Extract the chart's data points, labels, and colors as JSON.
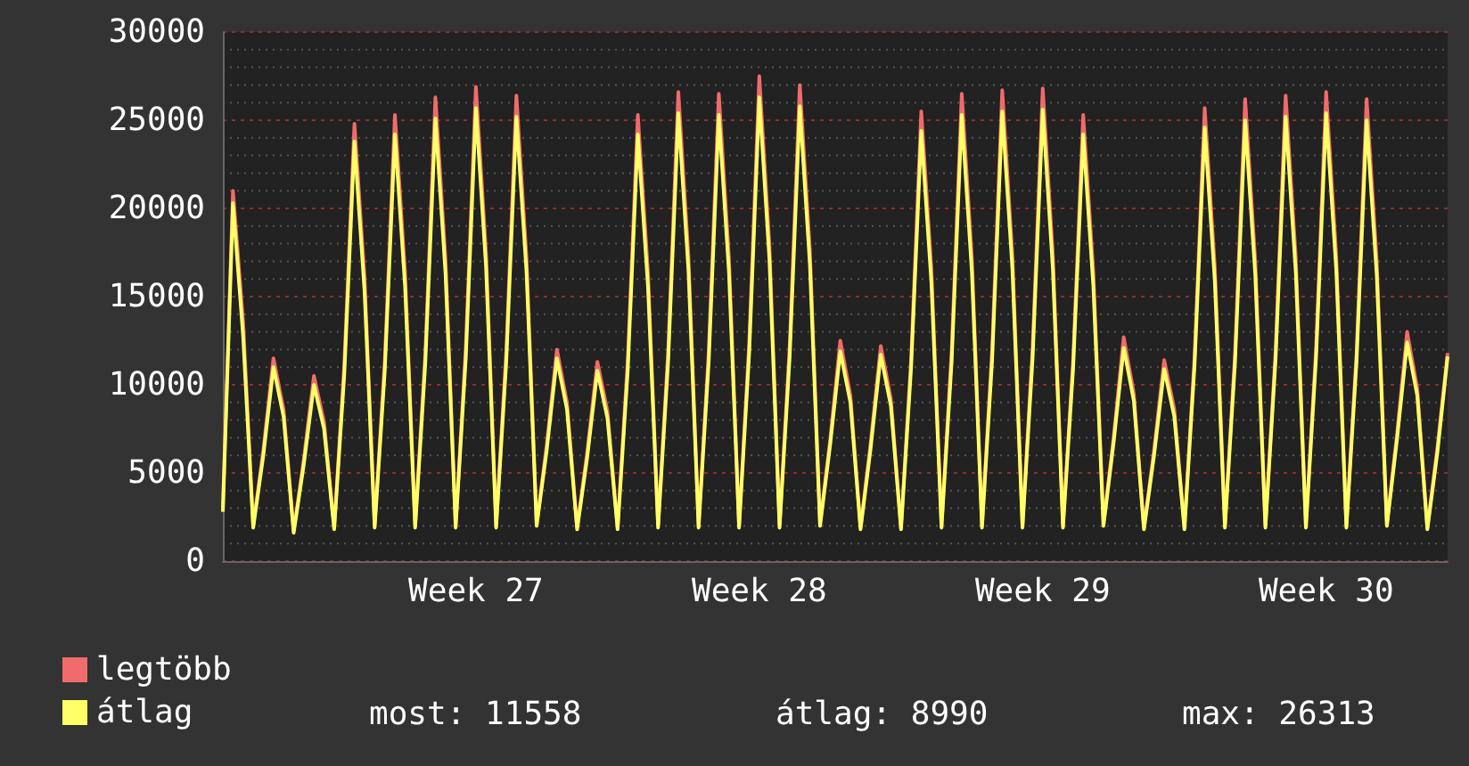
{
  "chart_data": {
    "type": "line",
    "marker": "none",
    "line_style": "solid",
    "grid": "y",
    "legend": "bottom left",
    "categories": [
      null,
      null,
      null,
      null,
      null,
      null,
      null,
      null,
      null,
      null,
      null,
      null,
      null,
      null,
      null,
      null,
      null,
      null,
      null,
      null,
      null,
      null,
      null,
      null,
      null,
      "Week 27",
      null,
      null,
      null,
      null,
      null,
      null,
      null,
      null,
      null,
      null,
      null,
      null,
      null,
      null,
      null,
      null,
      null,
      null,
      null,
      null,
      null,
      null,
      null,
      null,
      null,
      null,
      null,
      "Week 28",
      null,
      null,
      null,
      null,
      null,
      null,
      null,
      null,
      null,
      null,
      null,
      null,
      null,
      null,
      null,
      null,
      null,
      null,
      null,
      null,
      null,
      null,
      null,
      null,
      null,
      null,
      null,
      "Week 29",
      null,
      null,
      null,
      null,
      null,
      null,
      null,
      null,
      null,
      null,
      null,
      null,
      null,
      null,
      null,
      null,
      null,
      null,
      null,
      null,
      null,
      null,
      null,
      null,
      null,
      null,
      null,
      "Week 30",
      null,
      null,
      null,
      null,
      null,
      null,
      null,
      null,
      null,
      null,
      null,
      null
    ],
    "series": [
      {
        "name": "legtöbb",
        "color": "#f06b6b",
        "values": [
          3000,
          21000,
          13600,
          2000,
          6300,
          11500,
          8600,
          1700,
          5800,
          10500,
          7900,
          1900,
          11200,
          24800,
          16100,
          2000,
          11400,
          25300,
          16400,
          2000,
          11800,
          26300,
          17100,
          2000,
          12100,
          26900,
          17500,
          2000,
          11900,
          26400,
          17200,
          2100,
          6600,
          12000,
          9000,
          1900,
          6200,
          11300,
          8500,
          1900,
          11400,
          25300,
          16400,
          2000,
          12000,
          26600,
          17300,
          2000,
          11900,
          26500,
          17200,
          2000,
          12400,
          27500,
          17900,
          2000,
          12200,
          27000,
          17600,
          2100,
          6900,
          12500,
          9400,
          1900,
          6700,
          12200,
          9200,
          1900,
          11500,
          25500,
          16600,
          2000,
          11900,
          26500,
          17200,
          2000,
          12000,
          26700,
          17400,
          2000,
          12100,
          26800,
          17400,
          2000,
          11400,
          25300,
          16400,
          2100,
          7000,
          12700,
          9500,
          1900,
          6300,
          11400,
          8600,
          1900,
          11600,
          25700,
          16700,
          2000,
          11800,
          26200,
          17000,
          2000,
          11900,
          26400,
          17200,
          2000,
          12000,
          26600,
          17300,
          2000,
          11800,
          26200,
          17000,
          2100,
          7200,
          13000,
          9800,
          1900,
          6500,
          11800
        ]
      },
      {
        "name": "átlag",
        "color": "#ffff66",
        "values": [
          2800,
          20300,
          12800,
          1900,
          6000,
          11000,
          8200,
          1600,
          5500,
          10000,
          7500,
          1800,
          10600,
          23800,
          15300,
          1900,
          10800,
          24200,
          15600,
          1900,
          11200,
          25100,
          16300,
          1900,
          11500,
          25700,
          16700,
          1900,
          11300,
          25200,
          16400,
          2000,
          6300,
          11500,
          8600,
          1800,
          5900,
          10800,
          8100,
          1800,
          10800,
          24200,
          15600,
          1900,
          11400,
          25400,
          16500,
          1900,
          11300,
          25300,
          16400,
          1900,
          11800,
          26300,
          17100,
          1900,
          11600,
          25800,
          16800,
          2000,
          6600,
          11900,
          9000,
          1800,
          6400,
          11700,
          8800,
          1800,
          11000,
          24400,
          15800,
          1900,
          11300,
          25300,
          16400,
          1900,
          11400,
          25500,
          16600,
          1900,
          11500,
          25600,
          16600,
          1900,
          10900,
          24200,
          15600,
          2000,
          6700,
          12100,
          9100,
          1800,
          6000,
          10900,
          8200,
          1800,
          11100,
          24600,
          15900,
          1900,
          11300,
          25000,
          16200,
          1900,
          11400,
          25200,
          16400,
          1900,
          11500,
          25400,
          16500,
          1900,
          11300,
          25000,
          16200,
          2000,
          6900,
          12400,
          9400,
          1800,
          6200,
          11600
        ]
      }
    ],
    "ylim": [
      0,
      30000
    ],
    "yticks": [
      0,
      {
        "value": 1000,
        "label": null
      },
      {
        "value": 2000,
        "label": null
      },
      {
        "value": 3000,
        "label": null
      },
      {
        "value": 4000,
        "label": null
      },
      5000,
      {
        "value": 6000,
        "label": null
      },
      {
        "value": 7000,
        "label": null
      },
      {
        "value": 8000,
        "label": null
      },
      {
        "value": 9000,
        "label": null
      },
      10000,
      {
        "value": 11000,
        "label": null
      },
      {
        "value": 12000,
        "label": null
      },
      {
        "value": 13000,
        "label": null
      },
      {
        "value": 14000,
        "label": null
      },
      15000,
      {
        "value": 16000,
        "label": null
      },
      {
        "value": 17000,
        "label": null
      },
      {
        "value": 18000,
        "label": null
      },
      {
        "value": 19000,
        "label": null
      },
      20000,
      {
        "value": 21000,
        "label": null
      },
      {
        "value": 22000,
        "label": null
      },
      {
        "value": 23000,
        "label": null
      },
      {
        "value": 24000,
        "label": null
      },
      25000,
      {
        "value": 26000,
        "label": null
      },
      {
        "value": 27000,
        "label": null
      },
      {
        "value": 28000,
        "label": null
      },
      {
        "value": 29000,
        "label": null
      },
      30000
    ],
    "annotations": [
      "most: 11558",
      "átlag: 8990",
      "max: 26313"
    ]
  }
}
